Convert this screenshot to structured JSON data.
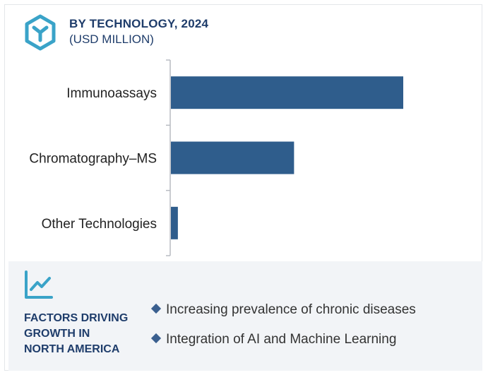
{
  "header": {
    "title": "BY TECHNOLOGY, 2024",
    "subtitle": "(USD MILLION)"
  },
  "icons": {
    "logo": "hexagon-y-logo-icon",
    "growth": "line-chart-icon",
    "bullet": "diamond-bullet-icon"
  },
  "colors": {
    "bar": "#2f5d8c",
    "heading": "#1f3d6b",
    "panel": "#f2f4f7",
    "accent": "#3aa3c8"
  },
  "chart_data": {
    "type": "bar",
    "orientation": "horizontal",
    "categories": [
      "Immunoassays",
      "Chromatography–MS",
      "Other Technologies"
    ],
    "values": [
      100,
      53,
      3
    ],
    "title": "BY TECHNOLOGY, 2024",
    "subtitle": "(USD MILLION)",
    "xlim": [
      0,
      100
    ],
    "grid": false,
    "legend": "none"
  },
  "factors": {
    "heading_lines": [
      "FACTORS DRIVING",
      "GROWTH IN",
      "NORTH AMERICA"
    ],
    "items": [
      "Increasing prevalence of chronic diseases",
      "Integration of AI and Machine Learning"
    ]
  }
}
